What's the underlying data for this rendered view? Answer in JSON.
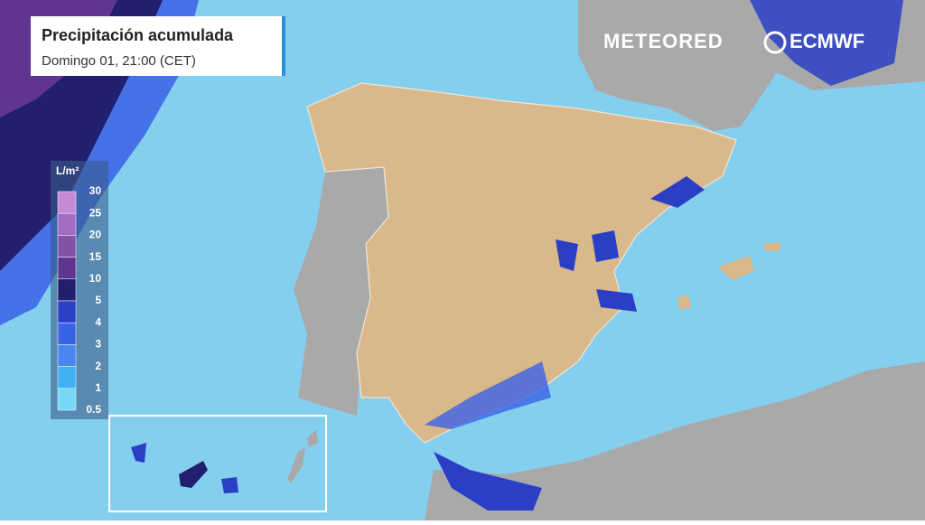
{
  "header": {
    "title": "Precipitación acumulada",
    "subtitle": "Domingo 01, 21:00 (CET)"
  },
  "logos": {
    "brand": "METEORED",
    "model": "ECMWF"
  },
  "legend": {
    "unit": "L/m²",
    "labels": [
      30,
      25,
      20,
      15,
      10,
      5,
      4,
      3,
      2,
      1,
      0.5
    ],
    "colors": [
      "#c58ad6",
      "#a36cc4",
      "#8552aa",
      "#5f3590",
      "#22206e",
      "#2a3fc6",
      "#3a62e6",
      "#4a86f0",
      "#3fb0f2",
      "#74d8f6"
    ]
  }
}
